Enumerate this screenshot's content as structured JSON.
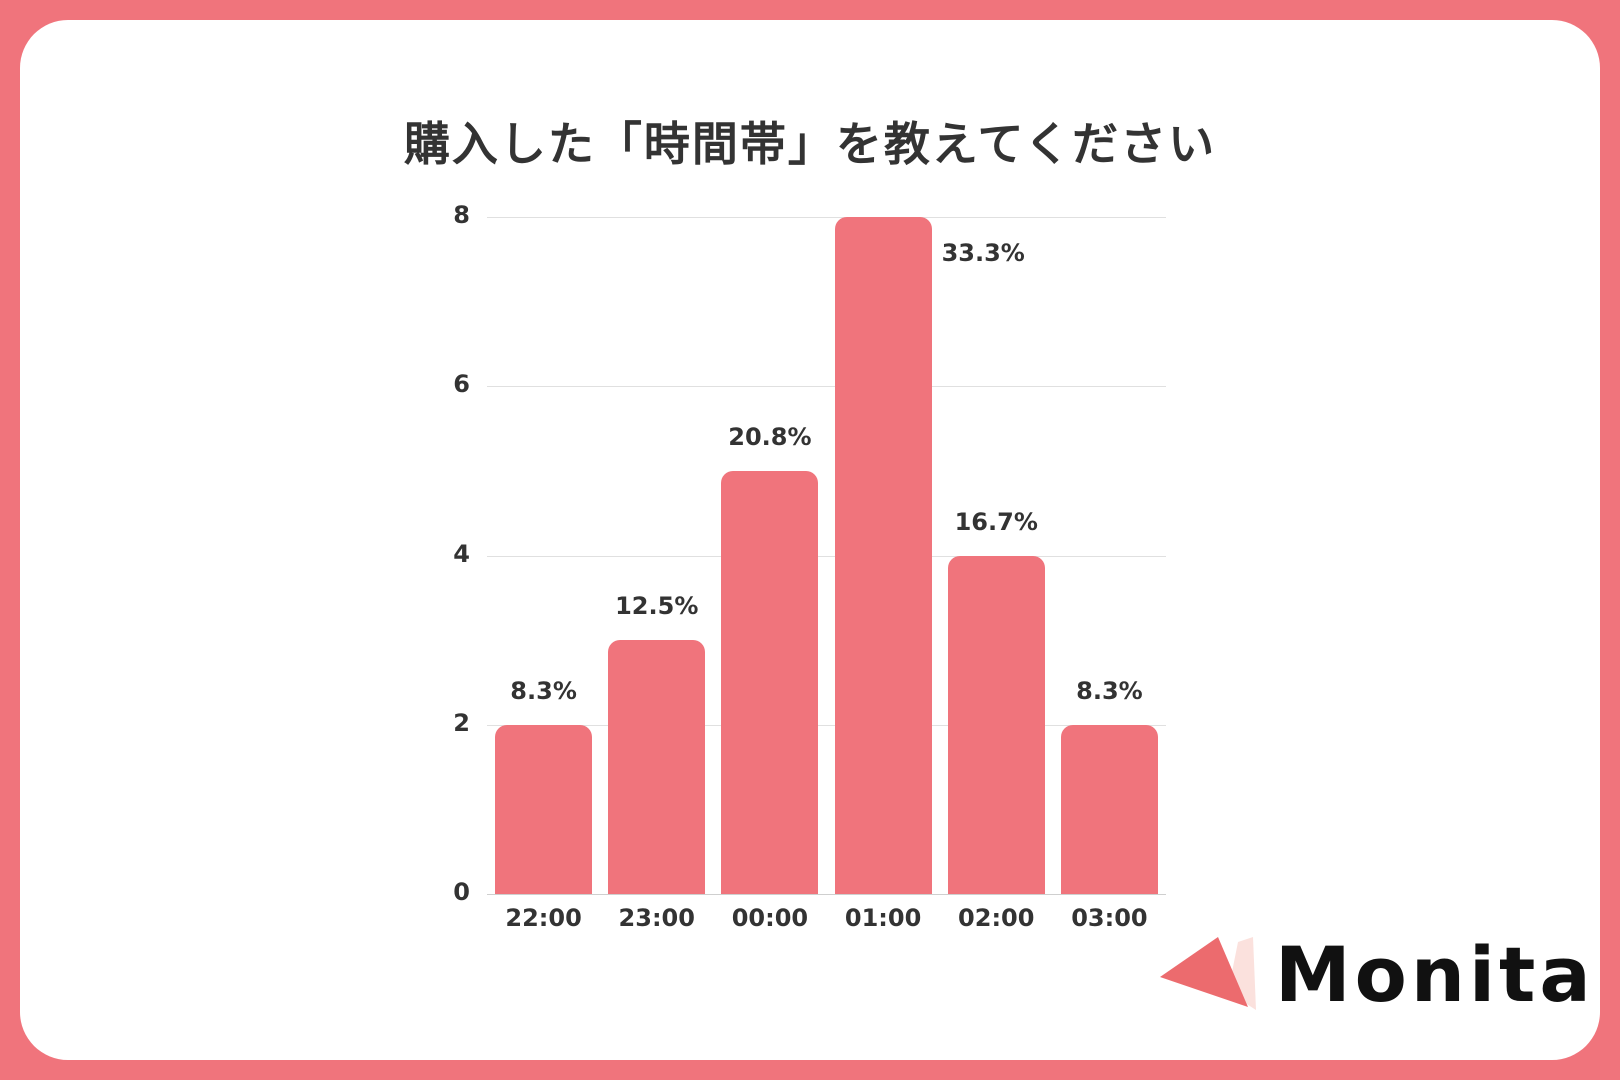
{
  "title": "購入した「時間帯」を教えてください",
  "brand": {
    "name": "Monita",
    "accent": "#f0747c"
  },
  "chart_data": {
    "type": "bar",
    "title": "購入した「時間帯」を教えてください",
    "categories": [
      "22:00",
      "23:00",
      "00:00",
      "01:00",
      "02:00",
      "03:00"
    ],
    "values": [
      2,
      3,
      5,
      8,
      4,
      2
    ],
    "labels": [
      "8.3%",
      "12.5%",
      "20.8%",
      "33.3%",
      "16.7%",
      "8.3%"
    ],
    "xlabel": "",
    "ylabel": "",
    "ylim": [
      0,
      8
    ],
    "yticks": [
      "0",
      "2",
      "4",
      "6",
      "8"
    ],
    "grid": true,
    "legend": null,
    "bar_color": "#f0747c"
  }
}
